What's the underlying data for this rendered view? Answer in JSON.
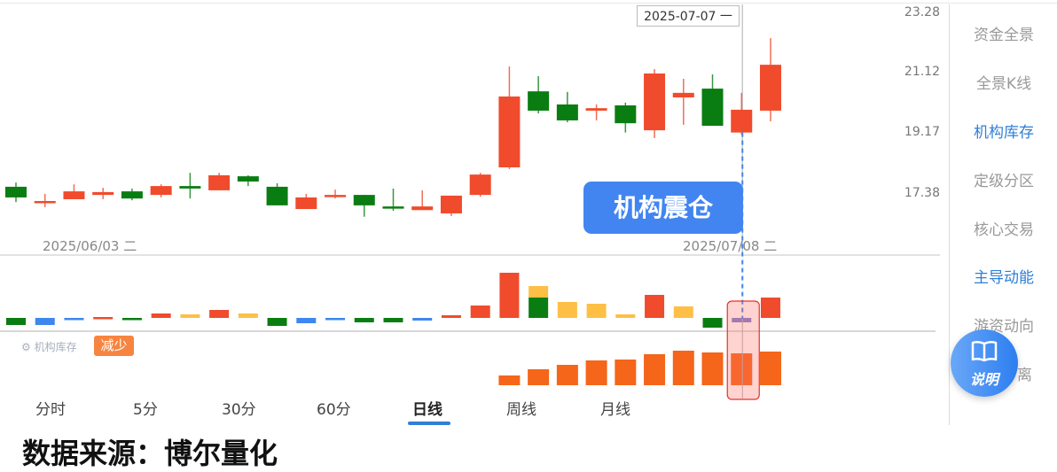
{
  "tooltip_date": "2025-07-07 一",
  "signal_label": "机构震仓",
  "date_labels": [
    "2025/06/03 二",
    "2025/07/08 二"
  ],
  "price_axis": {
    "scale": "log",
    "ticks": [
      "23.28",
      "21.12",
      "19.17",
      "17.38"
    ]
  },
  "sidebar": {
    "items": [
      {
        "label": "资金全景",
        "active": false
      },
      {
        "label": "全景K线",
        "active": false
      },
      {
        "label": "机构库存",
        "active": true
      },
      {
        "label": "定级分区",
        "active": false
      },
      {
        "label": "核心交易",
        "active": false
      },
      {
        "label": "主导动能",
        "active": true
      },
      {
        "label": "游资动向",
        "active": false
      },
      {
        "label": "离",
        "active": false
      }
    ]
  },
  "help_button": {
    "label": "说明",
    "icon": "book-icon"
  },
  "legend": {
    "label": "机构库存",
    "icon": "gear-icon",
    "badge": "减少"
  },
  "tabs": [
    {
      "label": "分时",
      "active": false
    },
    {
      "label": "5分",
      "active": false
    },
    {
      "label": "30分",
      "active": false
    },
    {
      "label": "60分",
      "active": false
    },
    {
      "label": "日线",
      "active": true
    },
    {
      "label": "周线",
      "active": false
    },
    {
      "label": "月线",
      "active": false
    }
  ],
  "footer": "数据来源：博尔量化",
  "colors": {
    "up": "#f04b2c",
    "down": "#0a7d12",
    "blue": "#3f86ee",
    "yellow": "#fdbf45",
    "purple": "#7b7fd0",
    "inventory": "#f5651a",
    "accent": "#2f7fd6"
  },
  "chart_data": {
    "type": "candlestick",
    "selected_index": 25,
    "candles": [
      {
        "o": 17.56,
        "h": 17.68,
        "l": 17.13,
        "c": 17.26
      },
      {
        "o": 17.11,
        "h": 17.36,
        "l": 16.99,
        "c": 17.16
      },
      {
        "o": 17.21,
        "h": 17.63,
        "l": 17.21,
        "c": 17.43
      },
      {
        "o": 17.33,
        "h": 17.53,
        "l": 17.21,
        "c": 17.41
      },
      {
        "o": 17.43,
        "h": 17.51,
        "l": 17.18,
        "c": 17.23
      },
      {
        "o": 17.33,
        "h": 17.63,
        "l": 17.26,
        "c": 17.58
      },
      {
        "o": 17.58,
        "h": 17.96,
        "l": 17.23,
        "c": 17.51
      },
      {
        "o": 17.46,
        "h": 17.96,
        "l": 17.46,
        "c": 17.89
      },
      {
        "o": 17.86,
        "h": 17.89,
        "l": 17.58,
        "c": 17.71
      },
      {
        "o": 17.56,
        "h": 17.66,
        "l": 17.04,
        "c": 17.04
      },
      {
        "o": 16.94,
        "h": 17.36,
        "l": 16.94,
        "c": 17.26
      },
      {
        "o": 17.28,
        "h": 17.48,
        "l": 17.23,
        "c": 17.33
      },
      {
        "o": 17.33,
        "h": 17.33,
        "l": 16.73,
        "c": 17.04
      },
      {
        "o": 17.01,
        "h": 17.51,
        "l": 16.89,
        "c": 16.96
      },
      {
        "o": 16.91,
        "h": 17.46,
        "l": 16.91,
        "c": 17.01
      },
      {
        "o": 16.82,
        "h": 17.31,
        "l": 16.75,
        "c": 17.31
      },
      {
        "o": 17.33,
        "h": 17.96,
        "l": 17.28,
        "c": 17.91
      },
      {
        "o": 18.12,
        "h": 21.33,
        "l": 18.07,
        "c": 20.32
      },
      {
        "o": 20.49,
        "h": 21.0,
        "l": 19.77,
        "c": 19.86
      },
      {
        "o": 20.06,
        "h": 20.47,
        "l": 19.49,
        "c": 19.55
      },
      {
        "o": 19.86,
        "h": 20.06,
        "l": 19.55,
        "c": 19.94
      },
      {
        "o": 20.03,
        "h": 20.12,
        "l": 19.17,
        "c": 19.46
      },
      {
        "o": 19.24,
        "h": 21.24,
        "l": 19.0,
        "c": 21.09
      },
      {
        "o": 20.29,
        "h": 20.91,
        "l": 19.41,
        "c": 20.44
      },
      {
        "o": 20.58,
        "h": 21.06,
        "l": 19.38,
        "c": 19.38
      },
      {
        "o": 19.17,
        "h": 20.44,
        "l": 19.11,
        "c": 19.89
      },
      {
        "o": 19.86,
        "h": 22.33,
        "l": 19.52,
        "c": 21.39
      }
    ],
    "momentum": [
      [
        {
          "v": -8,
          "color": "down"
        }
      ],
      [
        {
          "v": -8,
          "color": "blue"
        }
      ],
      [
        {
          "v": -1,
          "color": "blue"
        }
      ],
      [
        {
          "v": 1,
          "color": "up"
        }
      ],
      [
        {
          "v": -1,
          "color": "down"
        }
      ],
      [
        {
          "v": 5,
          "color": "up"
        }
      ],
      [
        {
          "v": 4,
          "color": "yellow"
        }
      ],
      [
        {
          "v": 9,
          "color": "up"
        }
      ],
      [
        {
          "v": 5,
          "color": "yellow"
        }
      ],
      [
        {
          "v": -9,
          "color": "down"
        }
      ],
      [
        {
          "v": -6,
          "color": "blue"
        }
      ],
      [
        {
          "v": -1,
          "color": "blue"
        }
      ],
      [
        {
          "v": -5,
          "color": "down"
        }
      ],
      [
        {
          "v": -5,
          "color": "down"
        }
      ],
      [
        {
          "v": -3,
          "color": "blue"
        }
      ],
      [
        {
          "v": 3,
          "color": "up"
        }
      ],
      [
        {
          "v": 14,
          "color": "up"
        }
      ],
      [
        {
          "v": 51,
          "color": "up"
        }
      ],
      [
        {
          "v": 23,
          "color": "down"
        },
        {
          "v": 13,
          "color": "yellow"
        }
      ],
      [
        {
          "v": 18,
          "color": "yellow"
        }
      ],
      [
        {
          "v": 16,
          "color": "yellow"
        }
      ],
      [
        {
          "v": 4,
          "color": "yellow"
        }
      ],
      [
        {
          "v": 26,
          "color": "up"
        }
      ],
      [
        {
          "v": 13,
          "color": "yellow"
        }
      ],
      [
        {
          "v": -11,
          "color": "down"
        }
      ],
      [
        {
          "v": -5,
          "color": "purple"
        }
      ],
      [
        {
          "v": 23,
          "color": "up"
        }
      ]
    ],
    "inventory_start_index": 17,
    "inventory": [
      11,
      18,
      23,
      28,
      29,
      35,
      39,
      37,
      36,
      38
    ]
  }
}
